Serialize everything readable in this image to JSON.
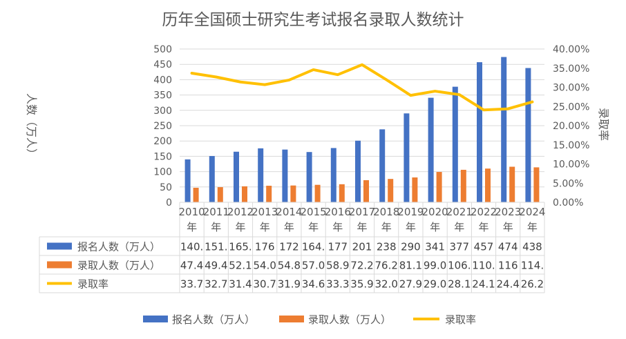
{
  "chart_data": {
    "type": "bar",
    "title": "历年全国硕士研究生考试报名录取人数统计",
    "ylabel": "人数（万人）",
    "y2label": "录取率",
    "ylim": [
      0,
      500
    ],
    "y2lim": [
      0,
      40
    ],
    "y_ticks": [
      "0",
      "50",
      "100",
      "150",
      "200",
      "250",
      "300",
      "350",
      "400",
      "450",
      "500"
    ],
    "y2_ticks": [
      "0.00%",
      "5.00%",
      "10.00%",
      "15.00%",
      "20.00%",
      "25.00%",
      "30.00%",
      "35.00%",
      "40.00%"
    ],
    "categories": [
      "2010年",
      "2011年",
      "2012年",
      "2013年",
      "2014年",
      "2015年",
      "2016年",
      "2017年",
      "2018年",
      "2019年",
      "2020年",
      "2021年",
      "2022年",
      "2023年",
      "2024年"
    ],
    "category_lines": [
      [
        "2010",
        "年"
      ],
      [
        "2011",
        "年"
      ],
      [
        "2012",
        "年"
      ],
      [
        "2013",
        "年"
      ],
      [
        "2014",
        "年"
      ],
      [
        "2015",
        "年"
      ],
      [
        "2016",
        "年"
      ],
      [
        "2017",
        "年"
      ],
      [
        "2018",
        "年"
      ],
      [
        "2019",
        "年"
      ],
      [
        "2020",
        "年"
      ],
      [
        "2021",
        "年"
      ],
      [
        "2022",
        "年"
      ],
      [
        "2023",
        "年"
      ],
      [
        "2024",
        "年"
      ]
    ],
    "series": [
      {
        "name": "报名人数（万人）",
        "type": "bar",
        "color": "#4472C4",
        "values": [
          140,
          151,
          165,
          176,
          172,
          164,
          177,
          201,
          238,
          290,
          341,
          377,
          457,
          474,
          438
        ],
        "table_text": [
          "140.",
          "151.",
          "165.",
          "176",
          "172",
          "164.",
          "177",
          "201",
          "238",
          "290",
          "341",
          "377",
          "457",
          "474",
          "438"
        ]
      },
      {
        "name": "录取人数（万人）",
        "type": "bar",
        "color": "#ED7D31",
        "values": [
          47.4,
          49.4,
          52.1,
          54.0,
          54.8,
          57.0,
          58.9,
          72.2,
          76.2,
          81.1,
          99.0,
          106,
          110,
          116,
          114
        ],
        "table_text": [
          "47.4",
          "49.4",
          "52.1",
          "54.0",
          "54.8",
          "57.0",
          "58.9",
          "72.2",
          "76.2",
          "81.1",
          "99.0",
          "106.",
          "110.",
          "116",
          "114."
        ]
      },
      {
        "name": "录取率",
        "type": "line",
        "color": "#FFC000",
        "axis": "right",
        "values": [
          33.7,
          32.7,
          31.4,
          30.7,
          31.9,
          34.6,
          33.3,
          35.9,
          32.0,
          27.9,
          29.0,
          28.1,
          24.1,
          24.4,
          26.2
        ],
        "table_text": [
          "33.7",
          "32.7",
          "31.4",
          "30.7",
          "31.9",
          "34.6",
          "33.3",
          "35.9",
          "32.0",
          "27.9",
          "29.0",
          "28.1",
          "24.1",
          "24.4",
          "26.2"
        ]
      }
    ],
    "grid": true,
    "legend": "bottom"
  }
}
